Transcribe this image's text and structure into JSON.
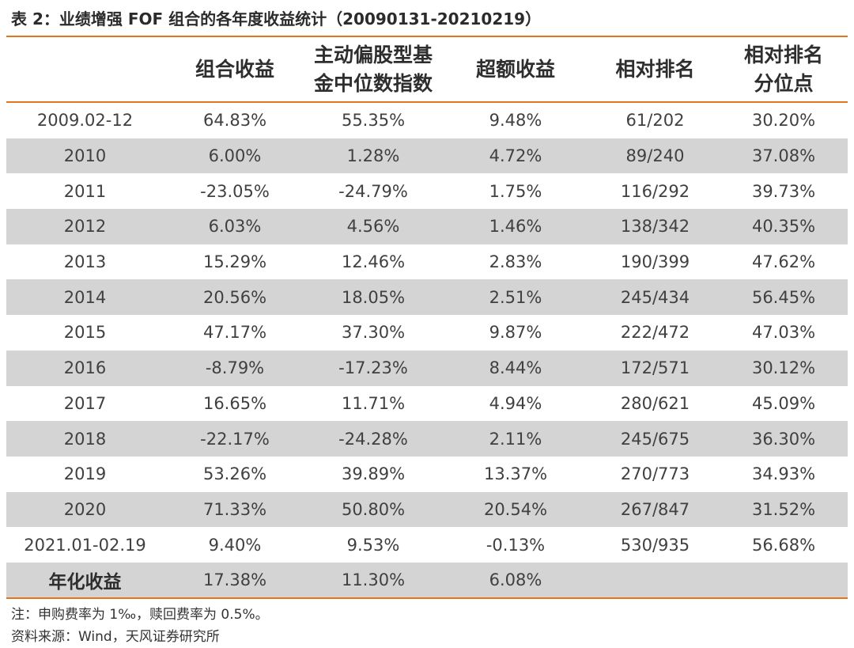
{
  "title": "表 2：业绩增强 FOF 组合的各年度收益统计（20090131-20210219）",
  "headers": [
    {
      "line1": "",
      "line2": ""
    },
    {
      "line1": "组合收益",
      "line2": ""
    },
    {
      "line1": "主动偏股型基",
      "line2": "金中位数指数"
    },
    {
      "line1": "超额收益",
      "line2": ""
    },
    {
      "line1": "相对排名",
      "line2": ""
    },
    {
      "line1": "相对排名",
      "line2": "分位点"
    }
  ],
  "rows": [
    {
      "period": "2009.02-12",
      "portfolio": "64.83%",
      "median_index": "55.35%",
      "excess": "9.48%",
      "rank": "61/202",
      "percentile": "30.20%",
      "shaded": false
    },
    {
      "period": "2010",
      "portfolio": "6.00%",
      "median_index": "1.28%",
      "excess": "4.72%",
      "rank": "89/240",
      "percentile": "37.08%",
      "shaded": true
    },
    {
      "period": "2011",
      "portfolio": "-23.05%",
      "median_index": "-24.79%",
      "excess": "1.75%",
      "rank": "116/292",
      "percentile": "39.73%",
      "shaded": false
    },
    {
      "period": "2012",
      "portfolio": "6.03%",
      "median_index": "4.56%",
      "excess": "1.46%",
      "rank": "138/342",
      "percentile": "40.35%",
      "shaded": true
    },
    {
      "period": "2013",
      "portfolio": "15.29%",
      "median_index": "12.46%",
      "excess": "2.83%",
      "rank": "190/399",
      "percentile": "47.62%",
      "shaded": false
    },
    {
      "period": "2014",
      "portfolio": "20.56%",
      "median_index": "18.05%",
      "excess": "2.51%",
      "rank": "245/434",
      "percentile": "56.45%",
      "shaded": true
    },
    {
      "period": "2015",
      "portfolio": "47.17%",
      "median_index": "37.30%",
      "excess": "9.87%",
      "rank": "222/472",
      "percentile": "47.03%",
      "shaded": false
    },
    {
      "period": "2016",
      "portfolio": "-8.79%",
      "median_index": "-17.23%",
      "excess": "8.44%",
      "rank": "172/571",
      "percentile": "30.12%",
      "shaded": true
    },
    {
      "period": "2017",
      "portfolio": "16.65%",
      "median_index": "11.71%",
      "excess": "4.94%",
      "rank": "280/621",
      "percentile": "45.09%",
      "shaded": false
    },
    {
      "period": "2018",
      "portfolio": "-22.17%",
      "median_index": "-24.28%",
      "excess": "2.11%",
      "rank": "245/675",
      "percentile": "36.30%",
      "shaded": true
    },
    {
      "period": "2019",
      "portfolio": "53.26%",
      "median_index": "39.89%",
      "excess": "13.37%",
      "rank": "270/773",
      "percentile": "34.93%",
      "shaded": false
    },
    {
      "period": "2020",
      "portfolio": "71.33%",
      "median_index": "50.80%",
      "excess": "20.54%",
      "rank": "267/847",
      "percentile": "31.52%",
      "shaded": true
    },
    {
      "period": "2021.01-02.19",
      "portfolio": "9.40%",
      "median_index": "9.53%",
      "excess": "-0.13%",
      "rank": "530/935",
      "percentile": "56.68%",
      "shaded": false
    },
    {
      "period": "年化收益",
      "portfolio": "17.38%",
      "median_index": "11.30%",
      "excess": "6.08%",
      "rank": "",
      "percentile": "",
      "shaded": true,
      "bold_period": true
    }
  ],
  "notes": {
    "note1": "注：申购费率为 1‰，赎回费率为 0.5%。",
    "note2": "资料来源：Wind，天风证券研究所"
  },
  "colors": {
    "accent_rule": "#e2761e",
    "shaded_row": "#d4d4d4"
  }
}
